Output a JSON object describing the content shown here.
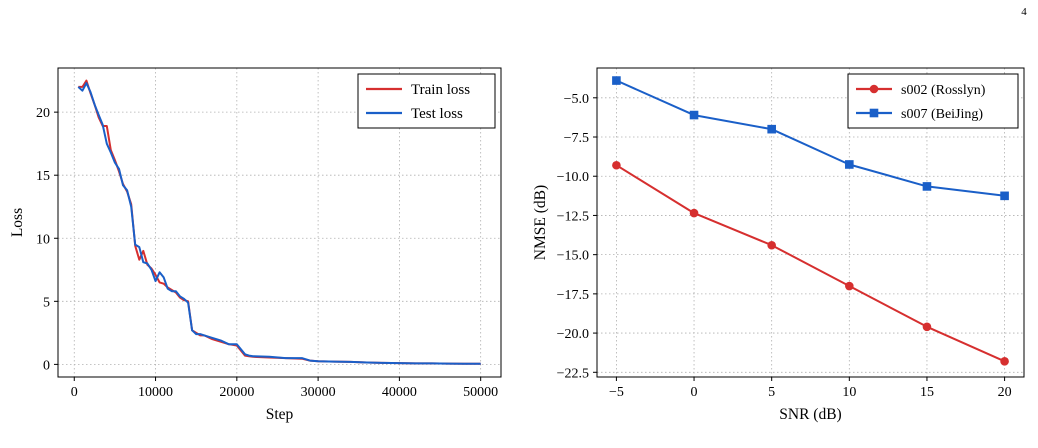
{
  "page": {
    "number": "4"
  },
  "chart_data": [
    {
      "type": "line",
      "title": "",
      "xlabel": "Step",
      "ylabel": "Loss",
      "xlim": [
        -2000,
        52500
      ],
      "ylim": [
        -1,
        23.5
      ],
      "xticks": [
        0,
        10000,
        20000,
        30000,
        40000,
        50000
      ],
      "yticks": [
        0,
        5,
        10,
        15,
        20
      ],
      "grid": true,
      "legend_position": "top-right",
      "series": [
        {
          "name": "Train loss",
          "color": "#d62f2f",
          "x": [
            500,
            1000,
            1500,
            2000,
            2500,
            3000,
            3500,
            4000,
            4500,
            5000,
            5500,
            6000,
            6500,
            7000,
            7500,
            8000,
            8500,
            9000,
            9500,
            10000,
            10500,
            11000,
            11500,
            12000,
            12500,
            13000,
            13500,
            14000,
            14500,
            15000,
            15500,
            16000,
            17000,
            18000,
            19000,
            20000,
            21000,
            21500,
            22000,
            24000,
            26000,
            28000,
            29000,
            30000,
            32000,
            34000,
            36000,
            38000,
            40000,
            42000,
            44000,
            46000,
            48000,
            50000
          ],
          "y": [
            22.0,
            22.0,
            22.5,
            21.5,
            20.6,
            19.6,
            18.9,
            18.9,
            17.0,
            16.2,
            15.3,
            14.3,
            13.7,
            12.7,
            9.4,
            8.3,
            9.0,
            7.9,
            7.6,
            7.1,
            6.5,
            6.4,
            6.1,
            5.9,
            5.7,
            5.3,
            5.1,
            5.0,
            2.7,
            2.5,
            2.3,
            2.3,
            2.0,
            1.8,
            1.6,
            1.5,
            0.7,
            0.65,
            0.6,
            0.55,
            0.5,
            0.45,
            0.3,
            0.25,
            0.22,
            0.2,
            0.15,
            0.12,
            0.1,
            0.08,
            0.08,
            0.06,
            0.05,
            0.05
          ]
        },
        {
          "name": "Test loss",
          "color": "#1a5fc8",
          "x": [
            500,
            1000,
            1500,
            2000,
            2500,
            3000,
            3500,
            4000,
            4500,
            5000,
            5500,
            6000,
            6500,
            7000,
            7500,
            8000,
            8500,
            9000,
            9500,
            10000,
            10500,
            11000,
            11500,
            12000,
            12500,
            13000,
            13500,
            14000,
            14500,
            15000,
            15500,
            16000,
            17000,
            18000,
            19000,
            20000,
            21000,
            21500,
            22000,
            24000,
            26000,
            28000,
            29000,
            30000,
            32000,
            34000,
            36000,
            38000,
            40000,
            42000,
            44000,
            46000,
            48000,
            50000
          ],
          "y": [
            22.0,
            21.7,
            22.3,
            21.6,
            20.6,
            19.8,
            19.0,
            17.5,
            16.8,
            16.0,
            15.5,
            14.2,
            13.8,
            12.5,
            9.5,
            9.3,
            8.1,
            8.0,
            7.5,
            6.6,
            7.3,
            6.9,
            6.0,
            5.8,
            5.8,
            5.4,
            5.2,
            4.9,
            2.7,
            2.4,
            2.4,
            2.3,
            2.1,
            1.9,
            1.6,
            1.6,
            0.8,
            0.7,
            0.65,
            0.6,
            0.5,
            0.5,
            0.3,
            0.25,
            0.22,
            0.2,
            0.15,
            0.12,
            0.1,
            0.08,
            0.08,
            0.06,
            0.05,
            0.05
          ]
        }
      ]
    },
    {
      "type": "line",
      "title": "",
      "xlabel": "SNR (dB)",
      "ylabel": "NMSE (dB)",
      "xlim": [
        -6.25,
        21.25
      ],
      "ylim": [
        -22.8,
        -3.1
      ],
      "xticks": [
        -5,
        0,
        5,
        10,
        15,
        20
      ],
      "yticks": [
        -5.0,
        -7.5,
        -10.0,
        -12.5,
        -15.0,
        -17.5,
        -20.0,
        -22.5
      ],
      "xtick_labels": [
        "−5",
        "0",
        "5",
        "10",
        "15",
        "20"
      ],
      "ytick_labels": [
        "−5.0",
        "−7.5",
        "−10.0",
        "−12.5",
        "−15.0",
        "−17.5",
        "−20.0",
        "−22.5"
      ],
      "grid": true,
      "legend_position": "top-right",
      "categories": [
        -5,
        0,
        5,
        10,
        15,
        20
      ],
      "series": [
        {
          "name": "s002 (Rosslyn)",
          "color": "#d62f2f",
          "marker": "circle",
          "values": [
            -9.3,
            -12.35,
            -14.4,
            -17.0,
            -19.6,
            -21.8
          ]
        },
        {
          "name": "s007 (BeiJing)",
          "color": "#1a5fc8",
          "marker": "square",
          "values": [
            -3.9,
            -6.1,
            -7.0,
            -9.25,
            -10.65,
            -11.25
          ]
        }
      ]
    }
  ]
}
